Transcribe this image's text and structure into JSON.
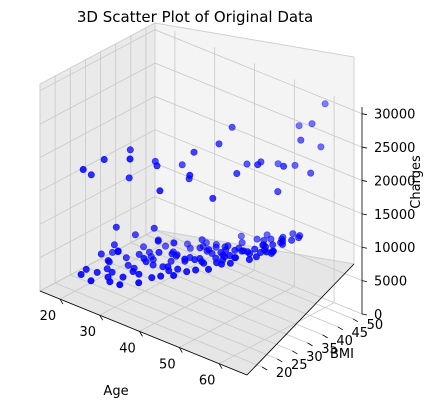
{
  "chart_data": {
    "type": "scatter",
    "title": "3D Scatter Plot of Original Data",
    "xlabel": "Age",
    "ylabel": "BMI",
    "zlabel": "Charges",
    "xlim": [
      15,
      67
    ],
    "ylim": [
      15,
      53
    ],
    "zlim": [
      0,
      31000
    ],
    "xticks": [
      "20",
      "30",
      "40",
      "50",
      "60"
    ],
    "yticks": [
      "20",
      "25",
      "30",
      "35",
      "40",
      "45",
      "50"
    ],
    "zticks": [
      "0",
      "5000",
      "10000",
      "15000",
      "20000",
      "25000",
      "30000"
    ],
    "grid": true,
    "marker_color": "#0000ff",
    "series": [
      {
        "points": [
          [
            19,
            25,
            1800
          ],
          [
            21,
            30,
            2200
          ],
          [
            22,
            28,
            1900
          ],
          [
            23,
            33,
            2600
          ],
          [
            24,
            27,
            2100
          ],
          [
            25,
            31,
            2400
          ],
          [
            26,
            23,
            2800
          ],
          [
            27,
            36,
            3000
          ],
          [
            28,
            29,
            3200
          ],
          [
            29,
            34,
            3500
          ],
          [
            30,
            26,
            3900
          ],
          [
            31,
            38,
            4200
          ],
          [
            32,
            30,
            4400
          ],
          [
            33,
            24,
            4700
          ],
          [
            34,
            35,
            5000
          ],
          [
            35,
            32,
            5200
          ],
          [
            36,
            28,
            5600
          ],
          [
            37,
            40,
            6000
          ],
          [
            38,
            27,
            6300
          ],
          [
            39,
            33,
            6500
          ],
          [
            40,
            30,
            6900
          ],
          [
            41,
            36,
            7200
          ],
          [
            42,
            25,
            7400
          ],
          [
            43,
            31,
            7800
          ],
          [
            44,
            38,
            8100
          ],
          [
            45,
            29,
            8300
          ],
          [
            46,
            34,
            8700
          ],
          [
            47,
            27,
            9000
          ],
          [
            48,
            32,
            9300
          ],
          [
            49,
            36,
            9600
          ],
          [
            50,
            30,
            10000
          ],
          [
            51,
            26,
            10300
          ],
          [
            52,
            33,
            10600
          ],
          [
            53,
            39,
            11000
          ],
          [
            54,
            28,
            11300
          ],
          [
            55,
            31,
            11700
          ],
          [
            56,
            35,
            12000
          ],
          [
            57,
            29,
            12400
          ],
          [
            58,
            33,
            12700
          ],
          [
            59,
            37,
            13100
          ],
          [
            60,
            30,
            13400
          ],
          [
            61,
            34,
            13800
          ],
          [
            62,
            28,
            14100
          ],
          [
            63,
            32,
            14500
          ],
          [
            64,
            36,
            14800
          ],
          [
            18,
            35,
            1700
          ],
          [
            20,
            22,
            2000
          ],
          [
            22,
            40,
            2300
          ],
          [
            24,
            20,
            2500
          ],
          [
            26,
            42,
            2900
          ],
          [
            28,
            21,
            3100
          ],
          [
            30,
            44,
            3700
          ],
          [
            32,
            19,
            4100
          ],
          [
            34,
            45,
            4600
          ],
          [
            36,
            20,
            5100
          ],
          [
            38,
            43,
            5800
          ],
          [
            40,
            22,
            6600
          ],
          [
            42,
            46,
            7300
          ],
          [
            44,
            21,
            7900
          ],
          [
            46,
            41,
            8500
          ],
          [
            48,
            23,
            9200
          ],
          [
            50,
            44,
            9900
          ],
          [
            52,
            22,
            10500
          ],
          [
            54,
            40,
            11200
          ],
          [
            56,
            24,
            11900
          ],
          [
            58,
            42,
            12500
          ],
          [
            60,
            25,
            13200
          ],
          [
            62,
            39,
            13900
          ],
          [
            64,
            27,
            14600
          ],
          [
            19,
            30,
            2900
          ],
          [
            23,
            27,
            3600
          ],
          [
            27,
            32,
            4300
          ],
          [
            31,
            29,
            4900
          ],
          [
            35,
            34,
            5700
          ],
          [
            39,
            26,
            6200
          ],
          [
            43,
            35,
            7600
          ],
          [
            47,
            31,
            8800
          ],
          [
            51,
            28,
            10200
          ],
          [
            55,
            36,
            11500
          ],
          [
            59,
            30,
            12800
          ],
          [
            63,
            35,
            14400
          ],
          [
            21,
            26,
            1600
          ],
          [
            25,
            38,
            2700
          ],
          [
            29,
            24,
            3300
          ],
          [
            33,
            41,
            4500
          ],
          [
            37,
            23,
            5400
          ],
          [
            41,
            39,
            7100
          ],
          [
            45,
            24,
            8000
          ],
          [
            49,
            42,
            9500
          ],
          [
            53,
            25,
            10800
          ],
          [
            57,
            40,
            12200
          ],
          [
            61,
            26,
            13600
          ],
          [
            20,
            33,
            3800
          ],
          [
            24,
            29,
            4800
          ],
          [
            28,
            37,
            5500
          ],
          [
            32,
            27,
            6100
          ],
          [
            36,
            31,
            6800
          ],
          [
            40,
            35,
            7700
          ],
          [
            44,
            28,
            8600
          ],
          [
            48,
            33,
            9800
          ],
          [
            52,
            29,
            10900
          ],
          [
            56,
            32,
            12100
          ],
          [
            60,
            36,
            13300
          ],
          [
            23,
            36,
            5300
          ],
          [
            27,
            25,
            6400
          ],
          [
            31,
            33,
            7000
          ],
          [
            35,
            28,
            7500
          ],
          [
            39,
            37,
            8200
          ],
          [
            43,
            26,
            8900
          ],
          [
            47,
            35,
            9700
          ],
          [
            51,
            32,
            10700
          ],
          [
            55,
            27,
            11800
          ],
          [
            59,
            34,
            13000
          ],
          [
            63,
            29,
            14200
          ],
          [
            22,
            31,
            7400
          ],
          [
            30,
            33,
            8700
          ],
          [
            38,
            29,
            9400
          ],
          [
            46,
            30,
            10100
          ],
          [
            54,
            31,
            11600
          ],
          [
            62,
            30,
            13700
          ],
          [
            18,
            28,
            15000
          ],
          [
            19,
            24,
            17000
          ],
          [
            22,
            27,
            18500
          ],
          [
            26,
            30,
            16000
          ],
          [
            24,
            33,
            19000
          ],
          [
            30,
            25,
            21000
          ],
          [
            28,
            36,
            17500
          ],
          [
            33,
            30,
            19500
          ],
          [
            36,
            27,
            17200
          ],
          [
            40,
            33,
            22500
          ],
          [
            42,
            29,
            20500
          ],
          [
            44,
            36,
            24000
          ],
          [
            47,
            30,
            18000
          ],
          [
            45,
            39,
            26000
          ],
          [
            50,
            34,
            21500
          ],
          [
            53,
            38,
            23000
          ],
          [
            56,
            33,
            24500
          ],
          [
            58,
            37,
            20000
          ],
          [
            61,
            35,
            25000
          ],
          [
            64,
            40,
            23500
          ],
          [
            60,
            42,
            27000
          ],
          [
            38,
            34,
            17800
          ],
          [
            34,
            37,
            18200
          ],
          [
            48,
            40,
            21000
          ],
          [
            57,
            44,
            22000
          ],
          [
            62,
            46,
            25500
          ],
          [
            55,
            48,
            26500
          ],
          [
            60,
            50,
            30500
          ],
          [
            59,
            47,
            28000
          ],
          [
            52,
            45,
            20800
          ]
        ]
      }
    ]
  }
}
